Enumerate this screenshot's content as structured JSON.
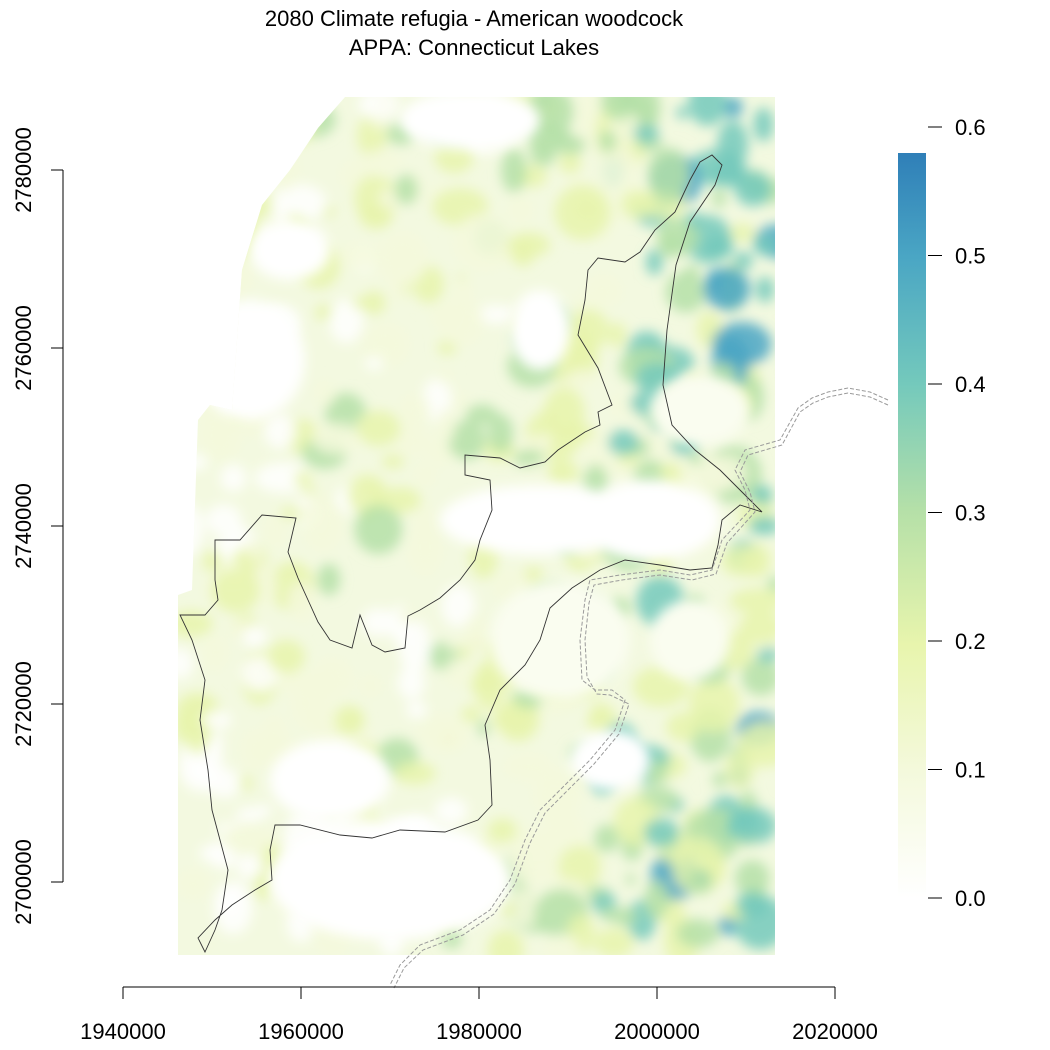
{
  "title": {
    "line1": "2080 Climate refugia - American woodcock",
    "line2": "APPA: Connecticut Lakes"
  },
  "chart_data": {
    "type": "heatmap",
    "x_ticks": [
      1940000,
      1960000,
      1980000,
      2000000,
      2020000
    ],
    "y_ticks": [
      2700000,
      2720000,
      2740000,
      2760000,
      2780000
    ],
    "x_tick_labels": [
      "1940000",
      "1960000",
      "1980000",
      "2000000",
      "2020000"
    ],
    "y_tick_labels": [
      "2700000",
      "2720000",
      "2740000",
      "2760000",
      "2780000"
    ],
    "xlim": [
      1940000,
      2020000
    ],
    "ylim": [
      2700000,
      2780000
    ],
    "legend": {
      "position": "right",
      "range": [
        0,
        0.58
      ],
      "ticks": [
        0.0,
        0.1,
        0.2,
        0.3,
        0.4,
        0.5,
        0.6
      ],
      "tick_labels": [
        "0.0",
        "0.1",
        "0.2",
        "0.3",
        "0.4",
        "0.5",
        "0.6"
      ],
      "colors": [
        "#ffffff",
        "#f4f9dc",
        "#e8f5ad",
        "#b5e0a8",
        "#74c9bc",
        "#4aa6c4",
        "#2f7fb8"
      ]
    },
    "overlays": [
      {
        "kind": "boundary",
        "style": "solid",
        "color": "#333333"
      },
      {
        "kind": "state-line",
        "style": "dashed",
        "color": "#999999"
      }
    ]
  }
}
